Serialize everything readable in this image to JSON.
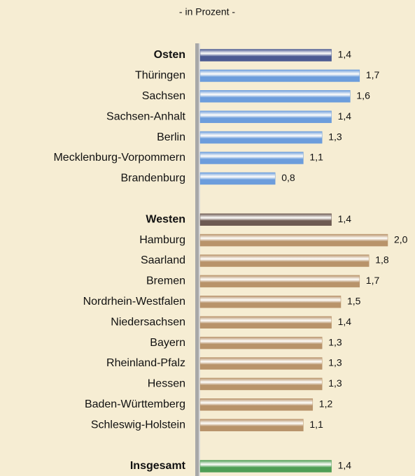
{
  "chart_data": {
    "type": "bar",
    "orientation": "horizontal",
    "title": "- in Prozent -",
    "categories": [
      "Osten",
      "Thüringen",
      "Sachsen",
      "Sachsen-Anhalt",
      "Berlin",
      "Mecklenburg-Vorpommern",
      "Brandenburg",
      null,
      "Westen",
      "Hamburg",
      "Saarland",
      "Bremen",
      "Nordrhein-Westfalen",
      "Niedersachsen",
      "Bayern",
      "Rheinland-Pfalz",
      "Hessen",
      "Baden-Württemberg",
      "Schleswig-Holstein",
      null,
      "Insgesamt"
    ],
    "values": [
      1.4,
      1.7,
      1.6,
      1.4,
      1.3,
      1.1,
      0.8,
      null,
      1.4,
      2.0,
      1.8,
      1.7,
      1.5,
      1.4,
      1.3,
      1.3,
      1.3,
      1.2,
      1.1,
      null,
      1.4
    ],
    "value_labels": [
      "1,4",
      "1,7",
      "1,6",
      "1,4",
      "1,3",
      "1,1",
      "0,8",
      null,
      "1,4",
      "2,0",
      "1,8",
      "1,7",
      "1,5",
      "1,4",
      "1,3",
      "1,3",
      "1,3",
      "1,2",
      "1,1",
      null,
      "1,4"
    ],
    "colors": [
      "#4b5a92",
      "#6c9ddc",
      "#6c9ddc",
      "#6c9ddc",
      "#6c9ddc",
      "#6c9ddc",
      "#6c9ddc",
      null,
      "#6d5a52",
      "#b8936a",
      "#b8936a",
      "#b8936a",
      "#b8936a",
      "#b8936a",
      "#b8936a",
      "#b8936a",
      "#b8936a",
      "#b8936a",
      "#b8936a",
      null,
      "#4e9e55"
    ],
    "highlight": [
      true,
      false,
      false,
      false,
      false,
      false,
      false,
      false,
      true,
      false,
      false,
      false,
      false,
      false,
      false,
      false,
      false,
      false,
      false,
      false,
      true
    ],
    "xlim": [
      0,
      2.0
    ]
  }
}
